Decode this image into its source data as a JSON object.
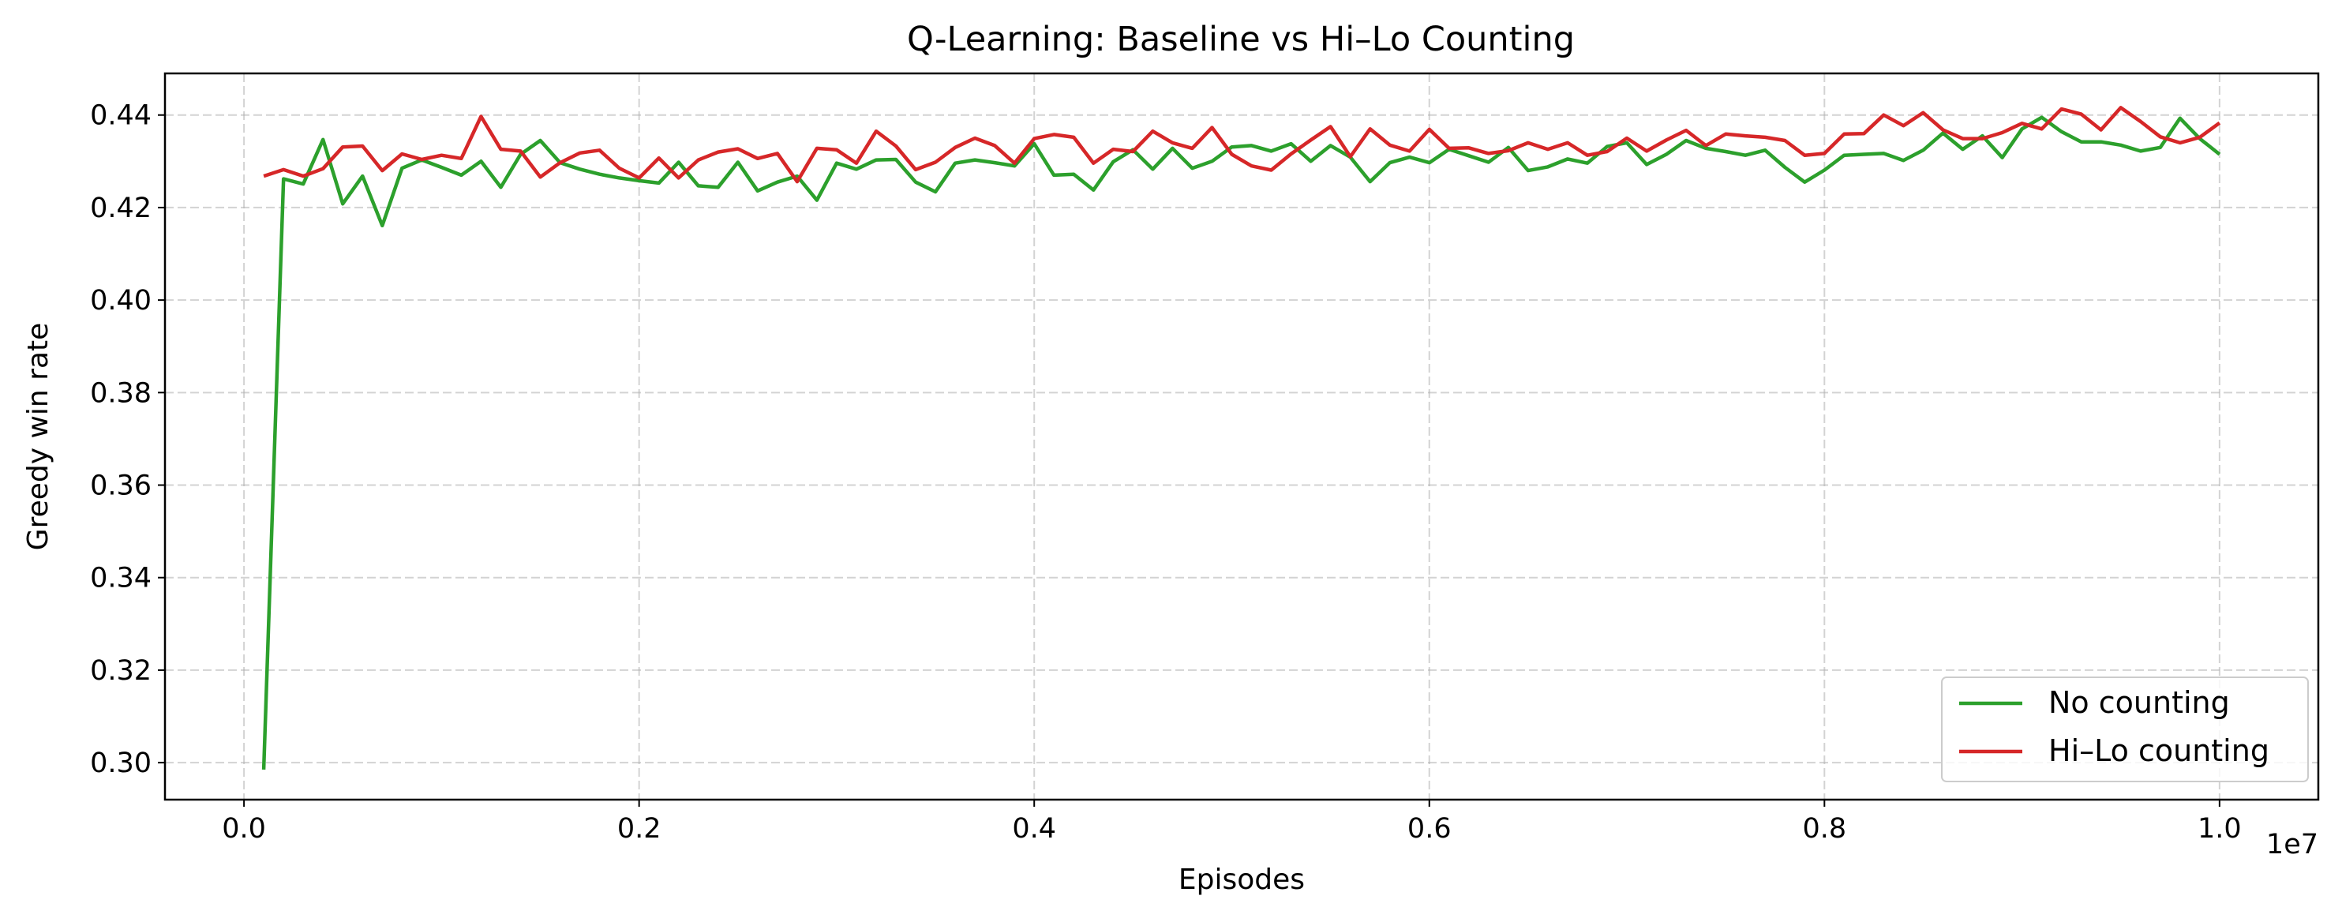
{
  "chart_data": {
    "type": "line",
    "title": "Q-Learning: Baseline vs Hi–Lo Counting",
    "xlabel": "Episodes",
    "ylabel": "Greedy win rate",
    "x_offset_label": "1e7",
    "xlim": [
      -0.04,
      1.05
    ],
    "ylim": [
      0.292,
      0.449
    ],
    "x_ticks": [
      0.0,
      0.2,
      0.4,
      0.6,
      0.8,
      1.0
    ],
    "x_tick_labels": [
      "0.0",
      "0.2",
      "0.4",
      "0.6",
      "0.8",
      "1.0"
    ],
    "y_ticks": [
      0.3,
      0.32,
      0.34,
      0.36,
      0.38,
      0.4,
      0.42,
      0.44
    ],
    "y_tick_labels": [
      "0.30",
      "0.32",
      "0.34",
      "0.36",
      "0.38",
      "0.40",
      "0.42",
      "0.44"
    ],
    "grid": true,
    "legend_position": "lower right",
    "x": [
      0.01,
      0.02,
      0.03,
      0.04,
      0.05,
      0.06,
      0.07,
      0.08,
      0.09,
      0.1,
      0.11,
      0.12,
      0.13,
      0.14,
      0.15,
      0.16,
      0.17,
      0.18,
      0.19,
      0.2,
      0.21,
      0.22,
      0.23,
      0.24,
      0.25,
      0.26,
      0.27,
      0.28,
      0.29,
      0.3,
      0.31,
      0.32,
      0.33,
      0.34,
      0.35,
      0.36,
      0.37,
      0.38,
      0.39,
      0.4,
      0.41,
      0.42,
      0.43,
      0.44,
      0.45,
      0.46,
      0.47,
      0.48,
      0.49,
      0.5,
      0.51,
      0.52,
      0.53,
      0.54,
      0.55,
      0.56,
      0.57,
      0.58,
      0.59,
      0.6,
      0.61,
      0.62,
      0.63,
      0.64,
      0.65,
      0.66,
      0.67,
      0.68,
      0.69,
      0.7,
      0.71,
      0.72,
      0.73,
      0.74,
      0.75,
      0.76,
      0.77,
      0.78,
      0.79,
      0.8,
      0.81,
      0.82,
      0.83,
      0.84,
      0.85,
      0.86,
      0.87,
      0.88,
      0.89,
      0.9,
      0.91,
      0.92,
      0.93,
      0.94,
      0.95,
      0.96,
      0.97,
      0.98,
      0.99,
      1.0
    ],
    "series": [
      {
        "name": "No counting",
        "color": "#2ca02c",
        "values": [
          0.2985,
          0.4262,
          0.4251,
          0.4347,
          0.4208,
          0.4268,
          0.4161,
          0.4285,
          0.4303,
          0.4287,
          0.427,
          0.43,
          0.4244,
          0.4315,
          0.4345,
          0.4297,
          0.4283,
          0.4272,
          0.4264,
          0.4258,
          0.4253,
          0.4298,
          0.4247,
          0.4244,
          0.4298,
          0.4236,
          0.4255,
          0.4268,
          0.4216,
          0.4296,
          0.4283,
          0.4303,
          0.4304,
          0.4255,
          0.4234,
          0.4296,
          0.4303,
          0.4297,
          0.429,
          0.4338,
          0.427,
          0.4272,
          0.4238,
          0.4299,
          0.4325,
          0.4283,
          0.4328,
          0.4285,
          0.43,
          0.4331,
          0.4334,
          0.4322,
          0.4338,
          0.43,
          0.4334,
          0.4309,
          0.4256,
          0.4297,
          0.4309,
          0.4297,
          0.4326,
          0.4312,
          0.4298,
          0.433,
          0.428,
          0.4288,
          0.4305,
          0.4296,
          0.4332,
          0.434,
          0.4293,
          0.4315,
          0.4345,
          0.4328,
          0.4321,
          0.4313,
          0.4324,
          0.4287,
          0.4255,
          0.4281,
          0.4313,
          0.4315,
          0.4317,
          0.4302,
          0.4324,
          0.4361,
          0.4326,
          0.4355,
          0.4308,
          0.437,
          0.4395,
          0.4364,
          0.4342,
          0.4342,
          0.4335,
          0.4322,
          0.433,
          0.4393,
          0.4349,
          0.4315
        ]
      },
      {
        "name": "Hi–Lo counting",
        "color": "#d62728",
        "values": [
          0.4268,
          0.4282,
          0.4268,
          0.4284,
          0.4331,
          0.4333,
          0.428,
          0.4316,
          0.4304,
          0.4313,
          0.4306,
          0.4397,
          0.4326,
          0.4322,
          0.4266,
          0.4297,
          0.4318,
          0.4324,
          0.4285,
          0.4264,
          0.4307,
          0.4264,
          0.4303,
          0.432,
          0.4327,
          0.4306,
          0.4317,
          0.4256,
          0.4328,
          0.4325,
          0.4296,
          0.4365,
          0.4333,
          0.4282,
          0.4298,
          0.433,
          0.435,
          0.4334,
          0.4296,
          0.4349,
          0.4358,
          0.4352,
          0.4296,
          0.4326,
          0.4321,
          0.4365,
          0.434,
          0.4328,
          0.4373,
          0.4315,
          0.429,
          0.4281,
          0.4316,
          0.4346,
          0.4375,
          0.431,
          0.437,
          0.4335,
          0.4322,
          0.4369,
          0.4328,
          0.4329,
          0.4317,
          0.4323,
          0.434,
          0.4326,
          0.434,
          0.4313,
          0.4321,
          0.435,
          0.4322,
          0.4346,
          0.4367,
          0.4334,
          0.4359,
          0.4355,
          0.4352,
          0.4345,
          0.4313,
          0.4317,
          0.4359,
          0.436,
          0.44,
          0.4377,
          0.4405,
          0.4368,
          0.4349,
          0.4349,
          0.4362,
          0.4382,
          0.437,
          0.4413,
          0.4402,
          0.4368,
          0.4416,
          0.4386,
          0.4353,
          0.434,
          0.4352,
          0.4383
        ]
      }
    ]
  }
}
